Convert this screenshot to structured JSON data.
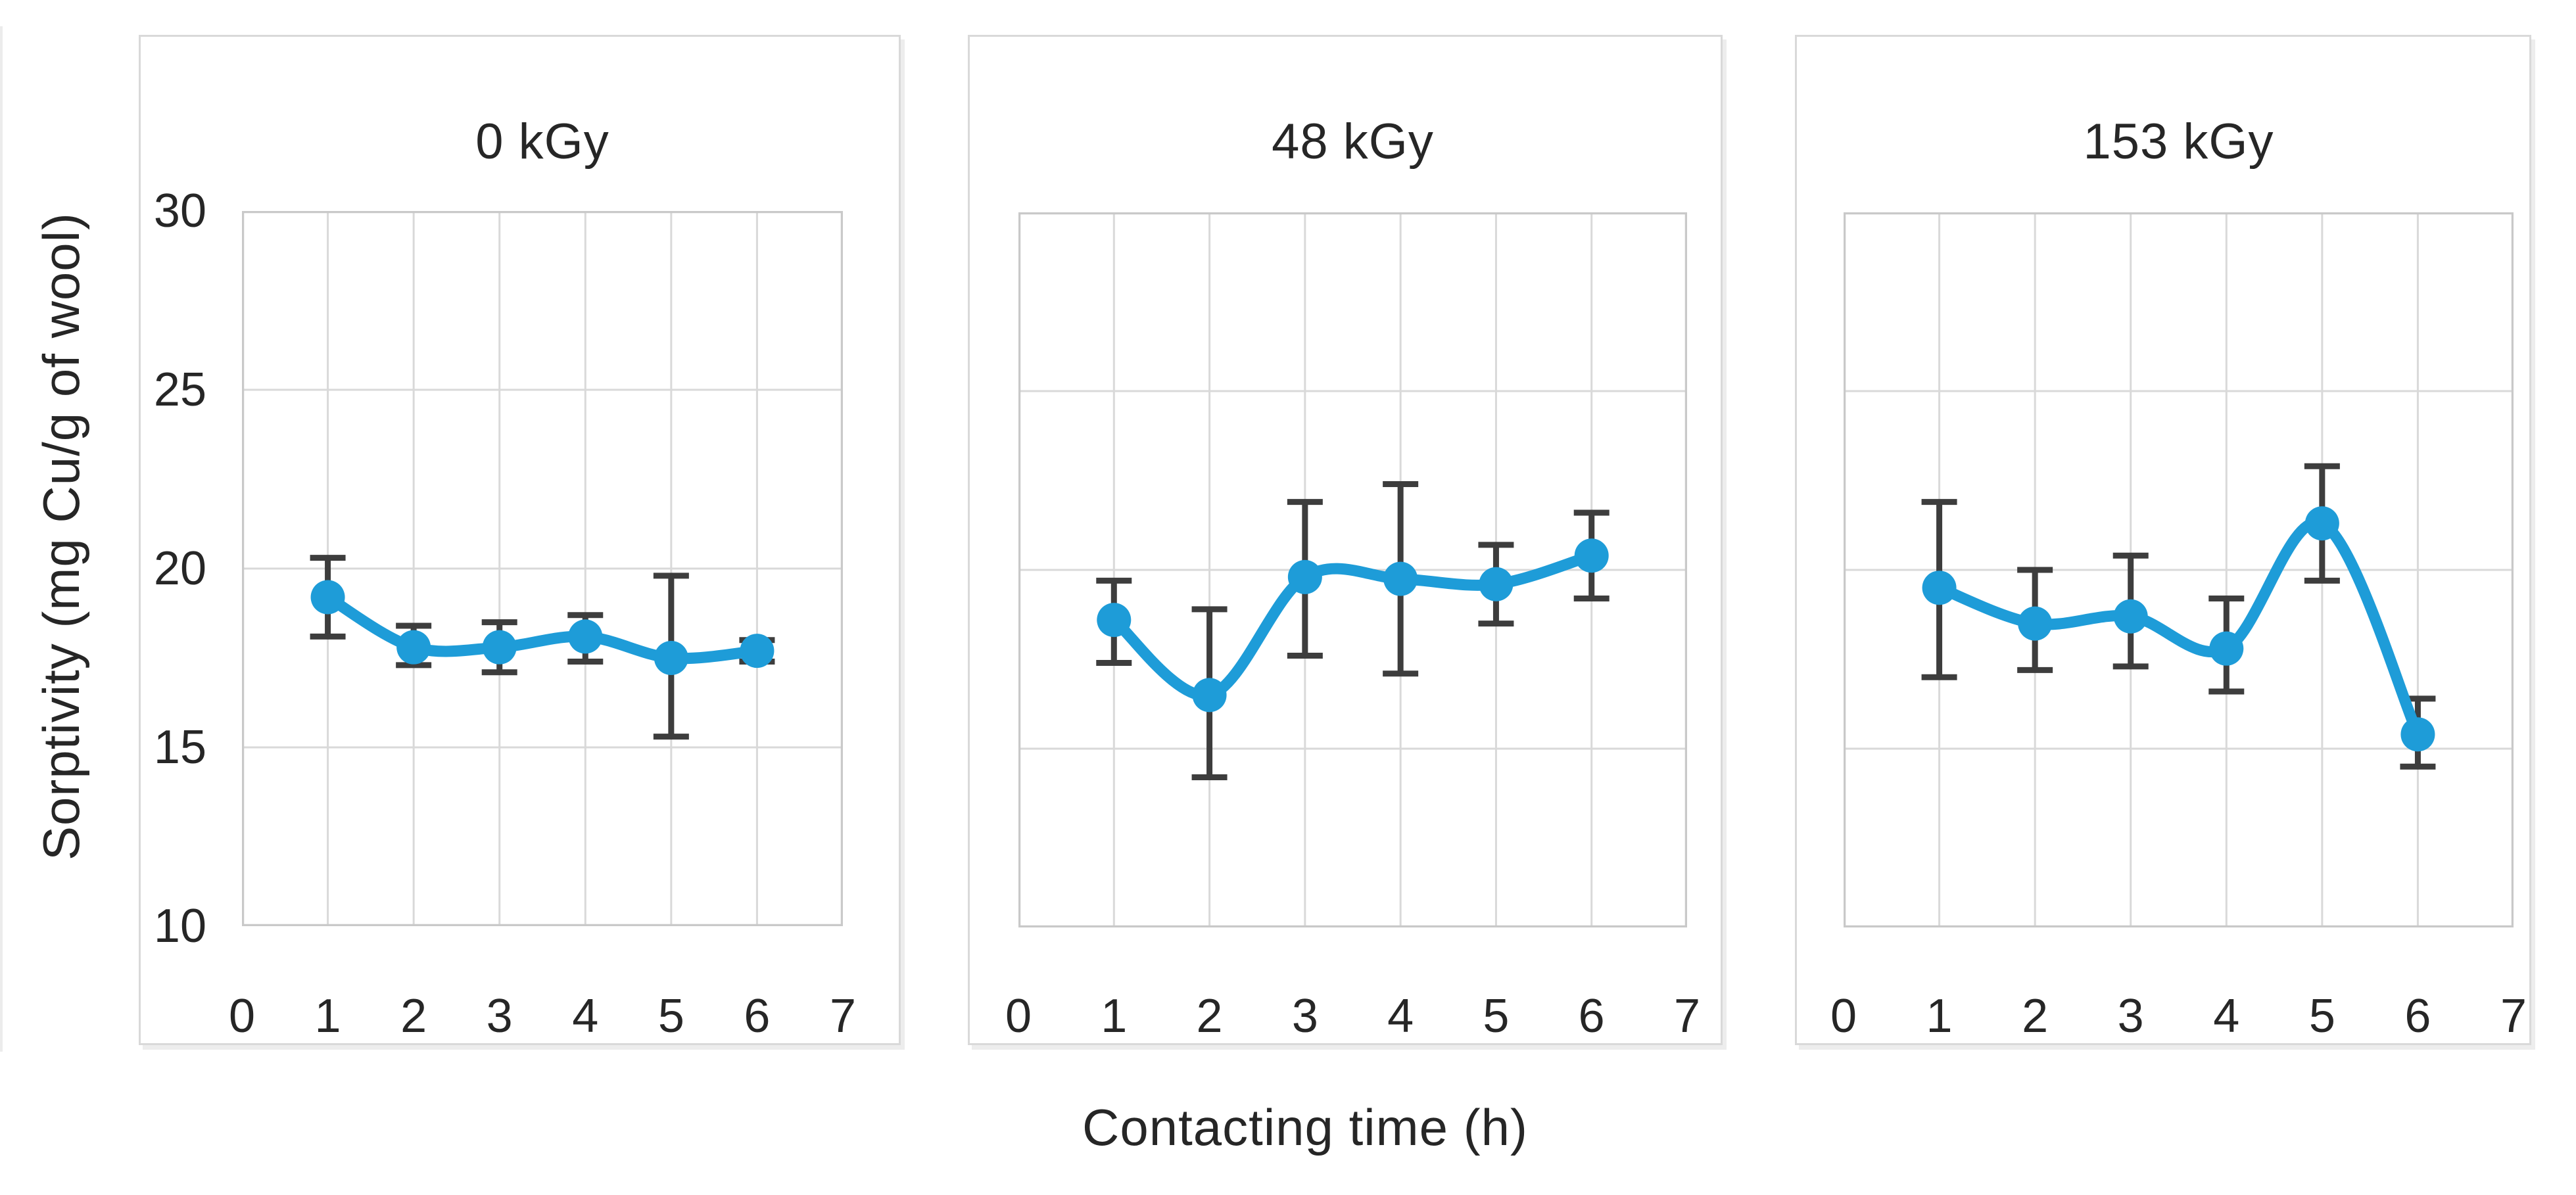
{
  "figure": {
    "y_axis_title": "Sorptivity (mg Cu/g of wool)",
    "x_axis_title": "Contacting time (h)"
  },
  "colors": {
    "line": "#1e9cd8",
    "marker": "#1e9cd8",
    "error_bar": "#3d3d3d",
    "gridline": "#d9d9d9",
    "plot_border": "#c9c9c9",
    "card_border": "#d9d9d9",
    "text": "#262626"
  },
  "chart_data": [
    {
      "type": "line",
      "title": "0 kGy",
      "xlabel": "Contacting time (h)",
      "ylabel": "Sorptivity (mg Cu/g of wool)",
      "x": [
        1,
        2,
        3,
        4,
        5,
        6
      ],
      "values": [
        19.2,
        17.8,
        17.8,
        18.1,
        17.5,
        17.7
      ],
      "error_top": [
        20.3,
        18.4,
        18.5,
        18.7,
        19.8,
        18.0
      ],
      "error_bottom": [
        18.1,
        17.3,
        17.1,
        17.4,
        15.3,
        17.4
      ],
      "xlim": [
        0,
        7
      ],
      "ylim": [
        10,
        30
      ],
      "x_ticks": [
        0,
        1,
        2,
        3,
        4,
        5,
        6,
        7
      ],
      "y_ticks": [
        10,
        15,
        20,
        25,
        30
      ],
      "show_y_tick_labels": true,
      "grid": true,
      "smooth": true,
      "marker": "circle",
      "legend": "none"
    },
    {
      "type": "line",
      "title": "48 kGy",
      "xlabel": "Contacting time (h)",
      "ylabel": "Sorptivity (mg Cu/g of wool)",
      "x": [
        1,
        2,
        3,
        4,
        5,
        6
      ],
      "values": [
        18.6,
        16.5,
        19.8,
        19.75,
        19.6,
        20.4
      ],
      "error_top": [
        19.7,
        18.9,
        21.9,
        22.4,
        20.7,
        21.6
      ],
      "error_bottom": [
        17.4,
        14.2,
        17.6,
        17.1,
        18.5,
        19.2
      ],
      "xlim": [
        0,
        7
      ],
      "ylim": [
        10,
        30
      ],
      "x_ticks": [
        0,
        1,
        2,
        3,
        4,
        5,
        6,
        7
      ],
      "y_ticks": [
        10,
        15,
        20,
        25,
        30
      ],
      "show_y_tick_labels": false,
      "grid": true,
      "smooth": true,
      "marker": "circle",
      "legend": "none"
    },
    {
      "type": "line",
      "title": "153 kGy",
      "xlabel": "Contacting time (h)",
      "ylabel": "Sorptivity (mg Cu/g of wool)",
      "x": [
        1,
        2,
        3,
        4,
        5,
        6
      ],
      "values": [
        19.5,
        18.5,
        18.7,
        17.8,
        21.3,
        15.4
      ],
      "error_top": [
        21.9,
        20.0,
        20.4,
        19.2,
        22.9,
        16.4
      ],
      "error_bottom": [
        17.0,
        17.2,
        17.3,
        16.6,
        19.7,
        14.5
      ],
      "xlim": [
        0,
        7
      ],
      "ylim": [
        10,
        30
      ],
      "x_ticks": [
        0,
        1,
        2,
        3,
        4,
        5,
        6,
        7
      ],
      "y_ticks": [
        10,
        15,
        20,
        25,
        30
      ],
      "show_y_tick_labels": false,
      "grid": true,
      "smooth": true,
      "marker": "circle",
      "legend": "none"
    }
  ]
}
